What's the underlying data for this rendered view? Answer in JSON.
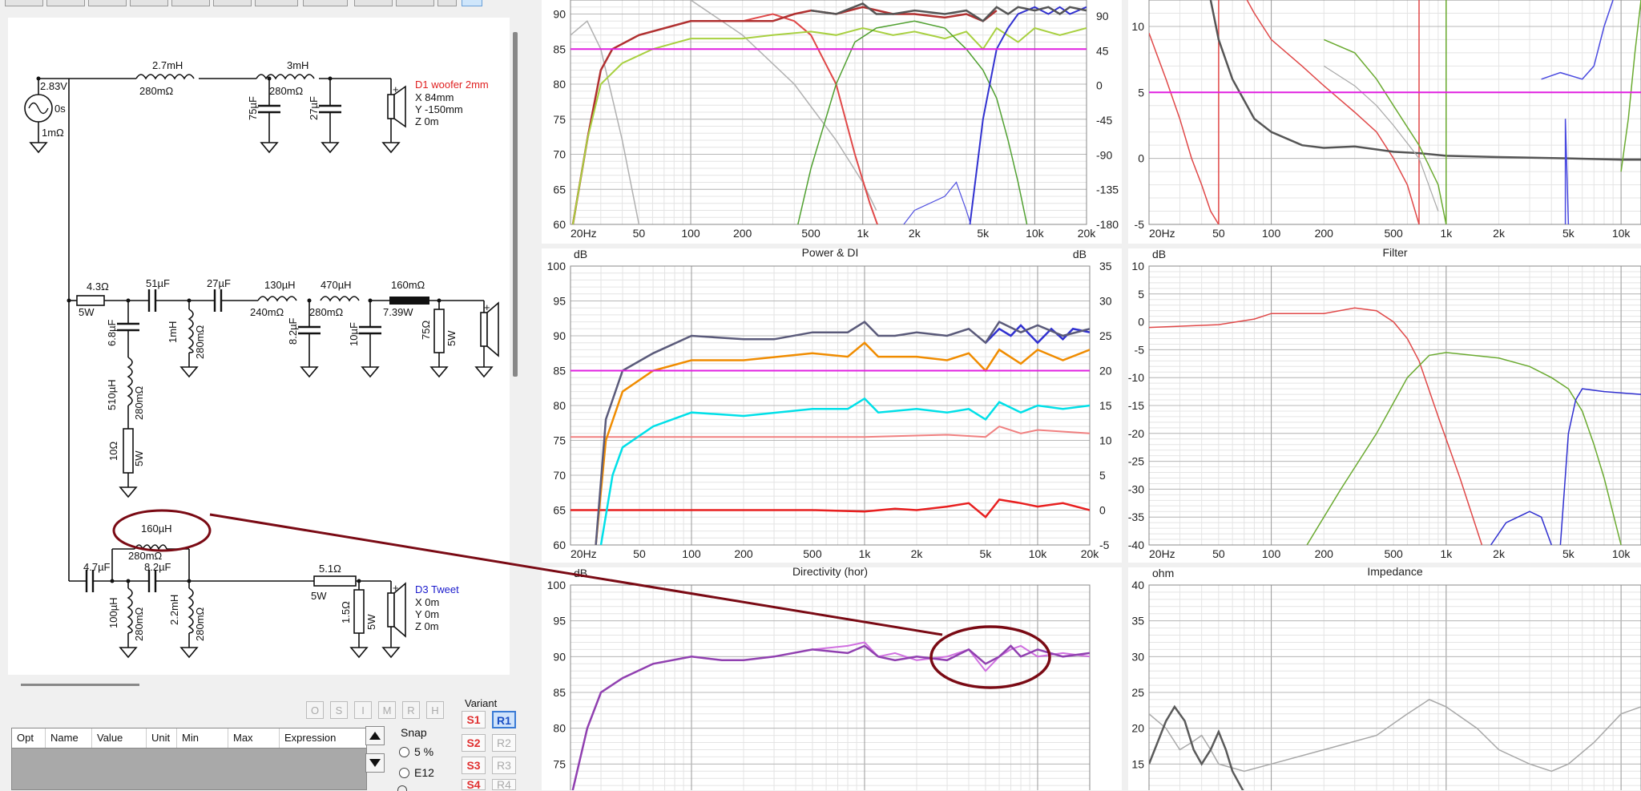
{
  "toolbar": {
    "buttons": [
      "",
      "",
      "",
      "",
      "",
      "",
      "",
      "",
      "",
      "",
      "",
      ""
    ]
  },
  "schematic": {
    "source": {
      "voltage": "2.83V",
      "delay": "0s",
      "resistance": "1mΩ"
    },
    "woofer_branch": {
      "l1": {
        "value": "2.7mH",
        "res": "280mΩ"
      },
      "l2": {
        "value": "3mH",
        "res": "280mΩ"
      },
      "c1": "75µF",
      "c2": "27µF",
      "driver": {
        "name": "D1 woofer 2mm",
        "x": "X 84mm",
        "y": "Y -150mm",
        "z": "Z 0m"
      }
    },
    "mid_branch": {
      "r1": {
        "value": "4.3Ω",
        "power": "5W"
      },
      "c1": "51µF",
      "c2": "27µF",
      "l1": {
        "value": "130µH",
        "res": "240mΩ"
      },
      "l2": {
        "value": "470µH",
        "res": "280mΩ"
      },
      "r2": {
        "value": "160mΩ",
        "power": "7.39W"
      },
      "shunt_c": "6.8µF",
      "shunt_l": {
        "value": "1mH",
        "res": "280mΩ"
      },
      "shunt_l2": {
        "value": "510µH",
        "res": "280mΩ"
      },
      "shunt_r": {
        "value": "10Ω",
        "power": "5W"
      },
      "c3": "8.2µF",
      "c4": "10µF",
      "r3": {
        "value": "75Ω",
        "power": "5W"
      }
    },
    "tweet_branch": {
      "l_top": {
        "value": "160µH",
        "res": "280mΩ"
      },
      "c1": "4.7µF",
      "c2": "8.2µF",
      "l1": {
        "value": "100µH",
        "res": "280mΩ"
      },
      "l2": {
        "value": "2.2mH",
        "res": "280mΩ"
      },
      "r1": {
        "value": "5.1Ω",
        "power": "5W"
      },
      "r2": {
        "value": "1.5Ω",
        "power": "5W"
      },
      "driver": {
        "name": "D3 Tweet",
        "x": "X 0m",
        "y": "Y 0m",
        "z": "Z 0m"
      }
    }
  },
  "small_buttons": [
    "O",
    "S",
    "I",
    "M",
    "R",
    "H"
  ],
  "opt_table": {
    "columns": [
      "Opt",
      "Name",
      "Value",
      "Unit",
      "Min",
      "Max",
      "Expression"
    ]
  },
  "snap": {
    "label": "Snap",
    "options": [
      "5 %",
      "E12"
    ]
  },
  "variant": {
    "label": "Variant",
    "s_buttons": [
      "S1",
      "S2",
      "S3",
      "S4"
    ],
    "r_buttons": [
      "R1",
      "R2",
      "R3",
      "R4"
    ]
  },
  "colors": {
    "red": "#e04848",
    "darkred": "#b03030",
    "green": "#6aaa30",
    "lightgreen": "#a8d040",
    "blue": "#3030d0",
    "gray": "#555555",
    "magenta": "#e020e0",
    "orange": "#f08c00",
    "cyan": "#00e0e8",
    "salmon": "#f08080",
    "purple": "#a040c0",
    "annotation": "#7a0a14"
  },
  "charts": {
    "spl": {
      "x_ticks": [
        "20Hz",
        "50",
        "100",
        "200",
        "500",
        "1k",
        "2k",
        "5k",
        "10k",
        "20k"
      ],
      "y_ticks": [
        "60",
        "65",
        "70",
        "75",
        "80",
        "85",
        "90"
      ],
      "y2_ticks": [
        "-180",
        "-135",
        "-90",
        "-45",
        "0",
        "45",
        "90"
      ]
    },
    "group_delay": {
      "x_ticks": [
        "20Hz",
        "50",
        "100",
        "200",
        "500",
        "1k",
        "2k",
        "5k",
        "10k"
      ],
      "y_ticks": [
        "-5",
        "0",
        "5",
        "10"
      ]
    },
    "power": {
      "title": "Power & DI",
      "ylabel": "dB",
      "y2label": "dB",
      "x_ticks": [
        "20Hz",
        "50",
        "100",
        "200",
        "500",
        "1k",
        "2k",
        "5k",
        "10k",
        "20k"
      ],
      "y_ticks": [
        "60",
        "65",
        "70",
        "75",
        "80",
        "85",
        "90",
        "95",
        "100"
      ],
      "y2_ticks": [
        "-5",
        "0",
        "5",
        "10",
        "15",
        "20",
        "25",
        "30",
        "35"
      ]
    },
    "filter": {
      "title": "Filter",
      "ylabel": "dB",
      "x_ticks": [
        "20Hz",
        "50",
        "100",
        "200",
        "500",
        "1k",
        "2k",
        "5k",
        "10k"
      ],
      "y_ticks": [
        "-40",
        "-35",
        "-30",
        "-25",
        "-20",
        "-15",
        "-10",
        "-5",
        "0",
        "5",
        "10"
      ]
    },
    "directivity": {
      "title": "Directivity (hor)",
      "ylabel": "dB",
      "y_ticks": [
        "75",
        "80",
        "85",
        "90",
        "95",
        "100"
      ]
    },
    "impedance": {
      "title": "Impedance",
      "ylabel": "ohm",
      "y_ticks": [
        "15",
        "20",
        "25",
        "30",
        "35",
        "40"
      ]
    }
  }
}
